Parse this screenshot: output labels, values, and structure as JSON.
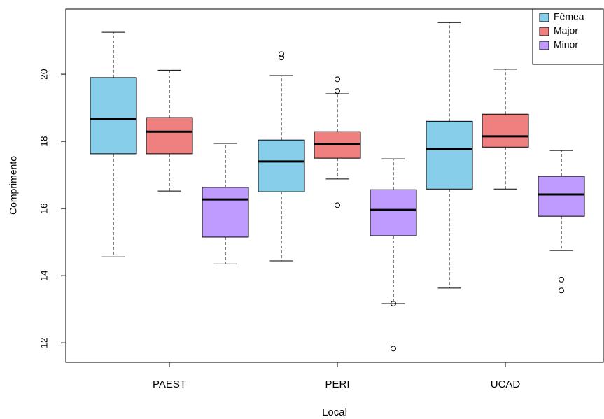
{
  "chart_data": {
    "type": "box",
    "x_label": "Local",
    "y_label": "Comprimento",
    "categories": [
      "PAEST",
      "PERI",
      "UCAD"
    ],
    "ylim": [
      11.42,
      21.94
    ],
    "yticks": [
      12,
      14,
      16,
      18,
      20
    ],
    "legend": "topright",
    "series": [
      {
        "name": "Fêmea",
        "color": "#87ceeb",
        "whisker_low": [
          14.56,
          14.44,
          13.63
        ],
        "q1": [
          17.63,
          16.5,
          16.58
        ],
        "median": [
          18.67,
          17.4,
          17.77
        ],
        "q3": [
          19.9,
          18.04,
          18.6
        ],
        "whisker_high": [
          21.25,
          19.96,
          21.54
        ],
        "outliers": [
          [],
          [
            20.6,
            20.5
          ],
          []
        ]
      },
      {
        "name": "Major",
        "color": "#f08080",
        "whisker_low": [
          16.52,
          16.88,
          16.58
        ],
        "q1": [
          17.63,
          17.5,
          17.83
        ],
        "median": [
          18.29,
          17.92,
          18.15
        ],
        "q3": [
          18.71,
          18.29,
          18.81
        ],
        "whisker_high": [
          20.12,
          19.42,
          20.15
        ],
        "outliers": [
          [],
          [
            19.85,
            19.5,
            16.1
          ],
          []
        ]
      },
      {
        "name": "Minor",
        "color": "#bf9bff",
        "whisker_low": [
          14.35,
          13.17,
          14.75
        ],
        "q1": [
          15.15,
          15.19,
          15.77
        ],
        "median": [
          16.27,
          15.96,
          16.42
        ],
        "q3": [
          16.63,
          16.56,
          16.96
        ],
        "whisker_high": [
          17.94,
          17.48,
          17.73
        ],
        "outliers": [
          [],
          [
            13.17,
            11.83
          ],
          [
            13.88,
            13.56
          ]
        ]
      }
    ]
  }
}
